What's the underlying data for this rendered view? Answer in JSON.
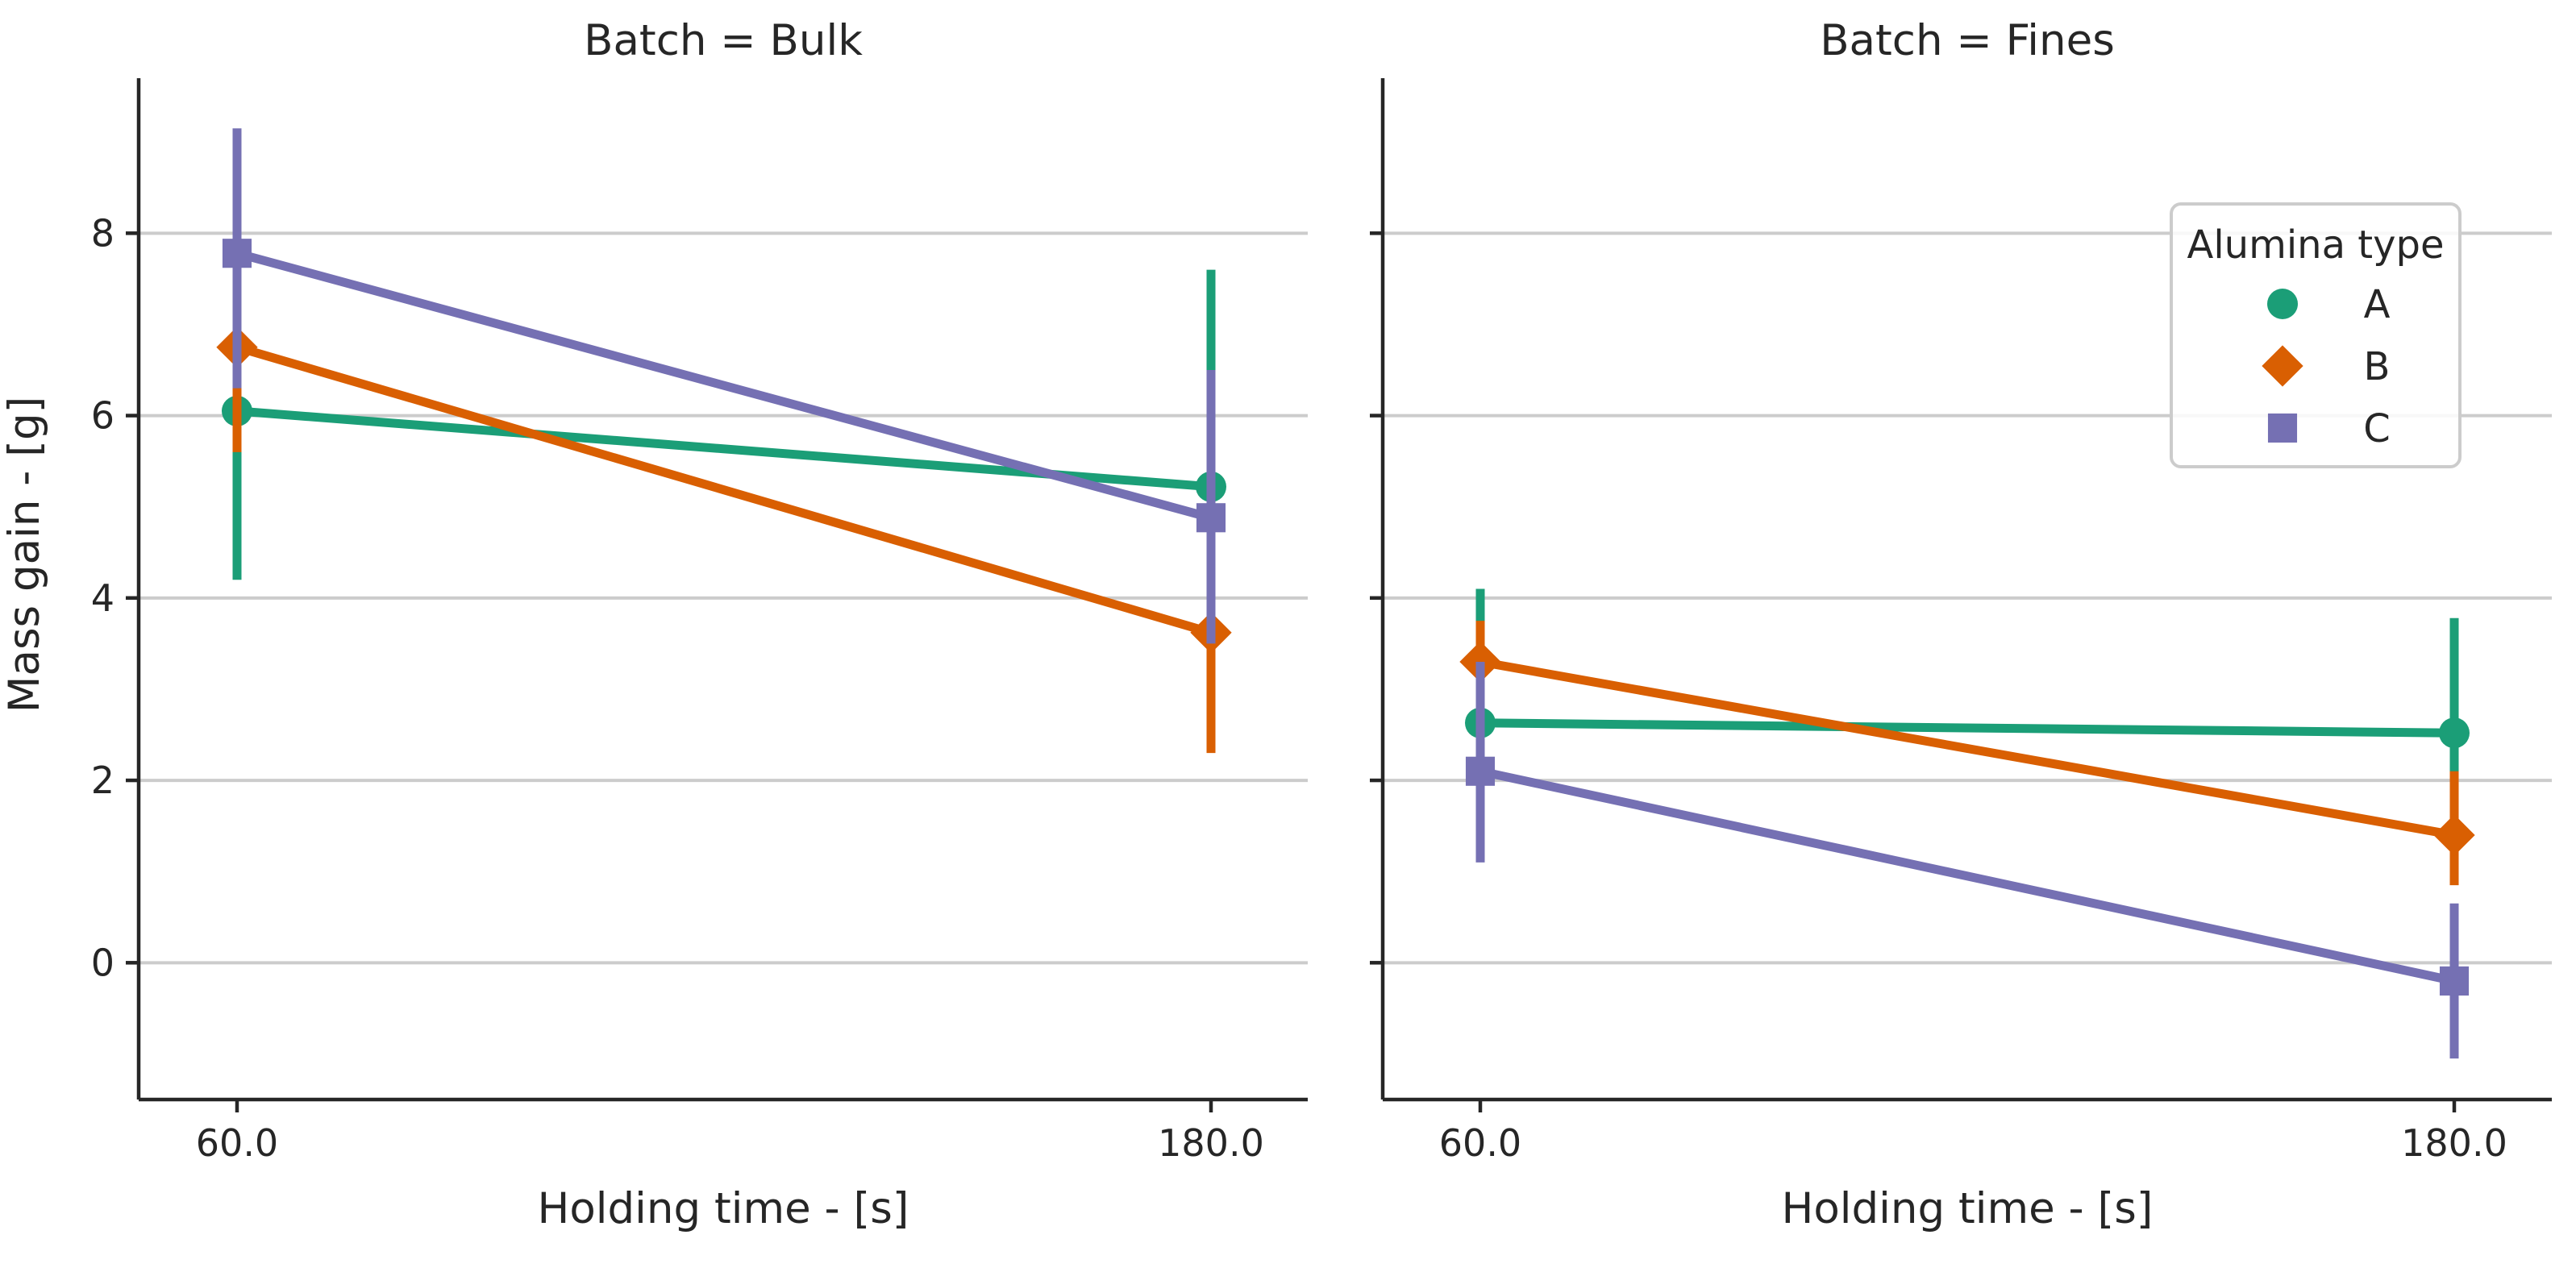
{
  "chart_data": {
    "type": "line",
    "ylabel": "Mass gain - [g]",
    "ylim": [
      -1.5,
      9.7
    ],
    "yticks": [
      0,
      2,
      4,
      6,
      8
    ],
    "grid": "horizontal",
    "legend": {
      "title": "Alumina type",
      "placement": "top-right",
      "entries": [
        {
          "name": "A",
          "marker": "circle"
        },
        {
          "name": "B",
          "marker": "diamond"
        },
        {
          "name": "C",
          "marker": "square"
        }
      ]
    },
    "colors": {
      "A": "#1b9e77",
      "B": "#d95f02",
      "C": "#7570b3"
    },
    "panels": [
      {
        "title": "Batch = Bulk",
        "xlabel": "Holding time - [s]",
        "categories": [
          "60.0",
          "180.0"
        ],
        "series": [
          {
            "name": "A",
            "values": [
              6.05,
              5.22
            ],
            "ci": [
              [
                4.2,
                6.6
              ],
              [
                3.5,
                7.6
              ]
            ]
          },
          {
            "name": "B",
            "values": [
              6.75,
              3.62
            ],
            "ci": [
              [
                5.6,
                7.5
              ],
              [
                2.3,
                4.3
              ]
            ]
          },
          {
            "name": "C",
            "values": [
              7.78,
              4.88
            ],
            "ci": [
              [
                6.3,
                9.15
              ],
              [
                3.5,
                6.5
              ]
            ]
          }
        ]
      },
      {
        "title": "Batch = Fines",
        "xlabel": "Holding time - [s]",
        "categories": [
          "60.0",
          "180.0"
        ],
        "series": [
          {
            "name": "A",
            "values": [
              2.63,
              2.52
            ],
            "ci": [
              [
                1.9,
                4.1
              ],
              [
                2.0,
                3.78
              ]
            ]
          },
          {
            "name": "B",
            "values": [
              3.3,
              1.4
            ],
            "ci": [
              [
                2.8,
                3.75
              ],
              [
                0.85,
                2.1
              ]
            ]
          },
          {
            "name": "C",
            "values": [
              2.1,
              -0.2
            ],
            "ci": [
              [
                1.1,
                3.3
              ],
              [
                -1.05,
                0.65
              ]
            ]
          }
        ]
      }
    ]
  }
}
